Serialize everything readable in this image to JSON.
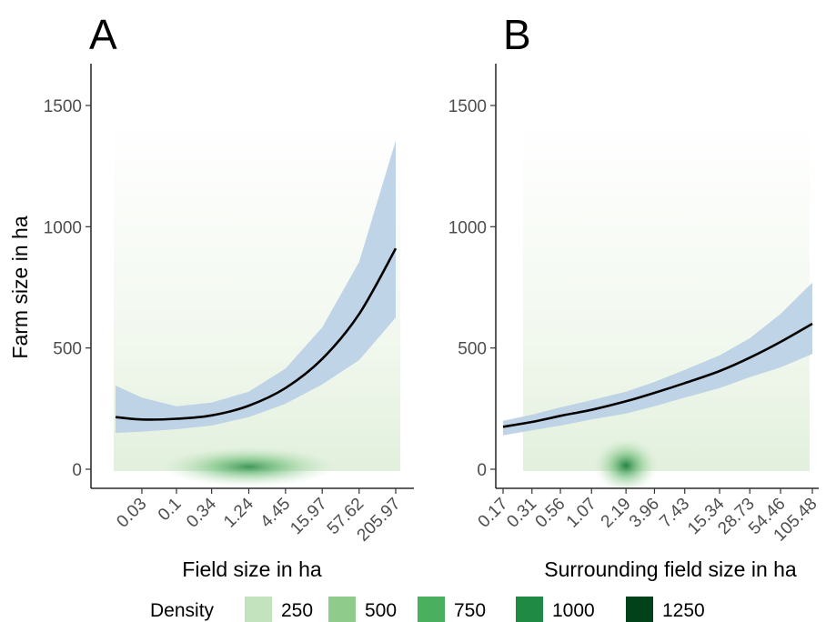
{
  "chart_data": [
    {
      "type": "area",
      "panel_label": "A",
      "xlabel": "Field size in ha",
      "ylabel": "Farm size in ha",
      "ylim": [
        0,
        1600
      ],
      "y_ticks": [
        0,
        500,
        1000,
        1500
      ],
      "x_tick_labels": [
        "0.03",
        "0.1",
        "0.34",
        "1.24",
        "4.45",
        "15.97",
        "57.62",
        "205.97"
      ],
      "x_range": [
        0.012,
        205.97
      ],
      "fit_color": "#000000",
      "ribbon_color": "#b9cfe6",
      "fit": {
        "x": [
          0.012,
          0.03,
          0.1,
          0.34,
          1.24,
          4.45,
          15.97,
          57.62,
          205.97
        ],
        "y": [
          215,
          205,
          208,
          222,
          262,
          335,
          455,
          640,
          910
        ]
      },
      "ribbon": {
        "x": [
          0.012,
          0.03,
          0.1,
          0.34,
          1.24,
          4.45,
          15.97,
          57.62,
          205.97
        ],
        "lower": [
          150,
          155,
          165,
          180,
          215,
          270,
          350,
          450,
          625
        ],
        "upper": [
          345,
          295,
          260,
          275,
          320,
          415,
          585,
          855,
          1355
        ]
      },
      "density_hotspot": {
        "x": 1.24,
        "y": 10
      }
    },
    {
      "type": "area",
      "panel_label": "B",
      "xlabel": "Surrounding field size in ha",
      "ylabel": "",
      "ylim": [
        0,
        1600
      ],
      "y_ticks": [
        0,
        500,
        1000,
        1500
      ],
      "x_tick_labels": [
        "0.17",
        "0.31",
        "0.56",
        "1.07",
        "2.19",
        "3.96",
        "7.43",
        "15.34",
        "28.73",
        "54.46",
        "105.48"
      ],
      "x_range": [
        0.17,
        105.48
      ],
      "fit_color": "#000000",
      "ribbon_color": "#b9cfe6",
      "fit": {
        "x": [
          0.17,
          0.31,
          0.56,
          1.07,
          2.19,
          3.96,
          7.43,
          15.34,
          28.73,
          54.46,
          105.48
        ],
        "y": [
          175,
          195,
          220,
          245,
          280,
          315,
          355,
          405,
          460,
          525,
          600
        ]
      },
      "ribbon": {
        "x": [
          0.17,
          0.31,
          0.56,
          1.07,
          2.19,
          3.96,
          7.43,
          15.34,
          28.73,
          54.46,
          105.48
        ],
        "lower": [
          140,
          160,
          180,
          205,
          230,
          260,
          295,
          335,
          380,
          420,
          475
        ],
        "upper": [
          200,
          225,
          255,
          285,
          320,
          360,
          410,
          470,
          540,
          640,
          770
        ]
      },
      "density_hotspot": {
        "x": 2.19,
        "y": 15
      }
    }
  ],
  "legend": {
    "title": "Density",
    "position": "bottom",
    "items": [
      {
        "label": "250",
        "color": "#c2e3bd"
      },
      {
        "label": "500",
        "color": "#8fcc8c"
      },
      {
        "label": "750",
        "color": "#4aaf5e"
      },
      {
        "label": "1000",
        "color": "#1e8a43"
      },
      {
        "label": "1250",
        "color": "#02421b"
      }
    ]
  }
}
